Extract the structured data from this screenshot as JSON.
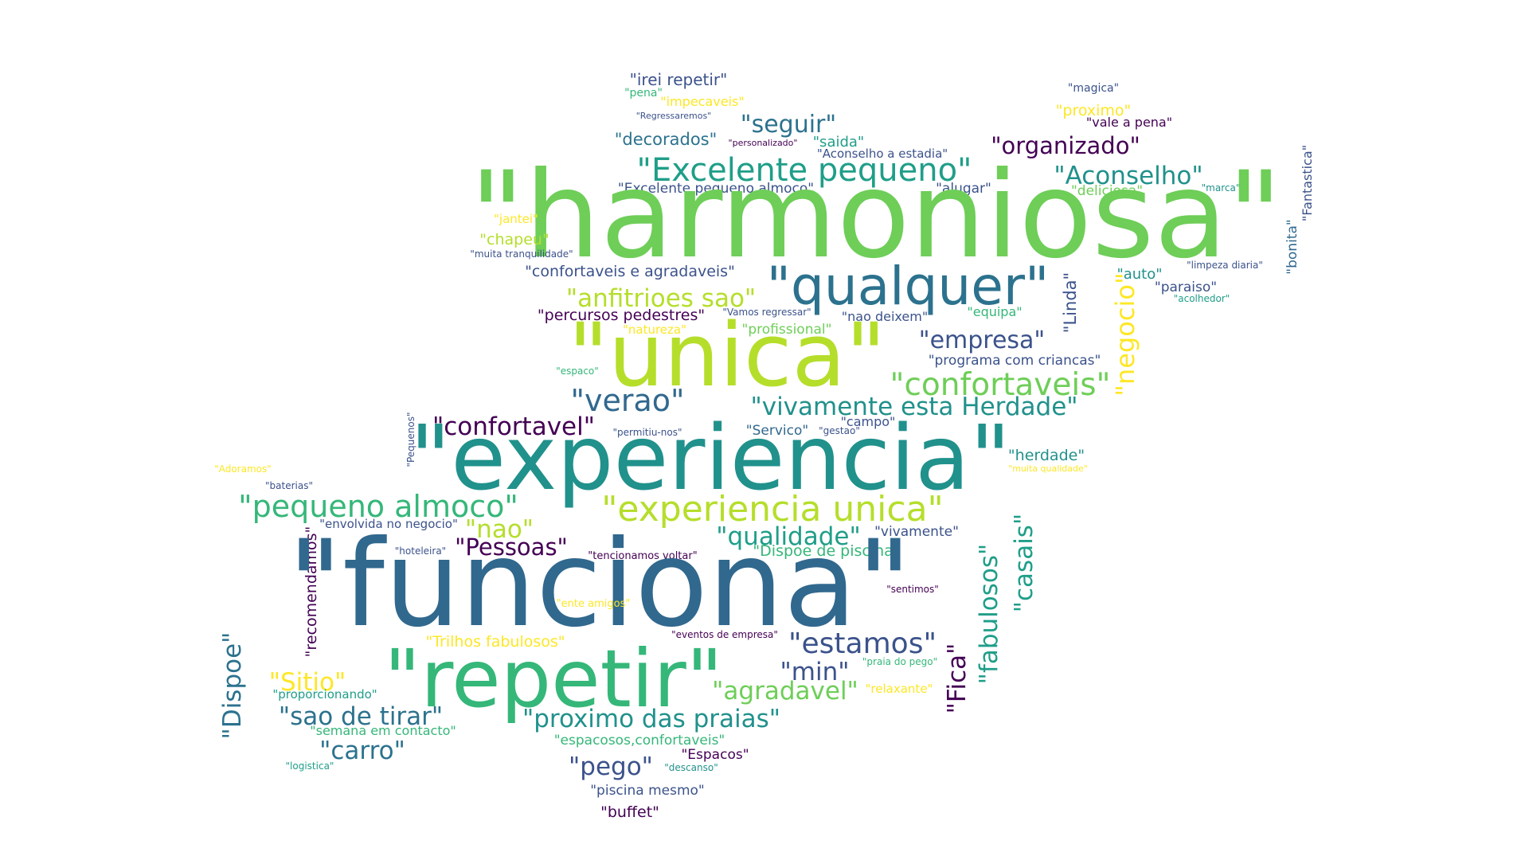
{
  "palette": {
    "dark_purple": "#440154",
    "indigo": "#3b528b",
    "blue": "#31688e",
    "teal_blue": "#2c728e",
    "teal": "#21918c",
    "sea_green": "#1f9e89",
    "green": "#35b779",
    "light_green": "#6ece58",
    "lime": "#b5de2b",
    "yellow": "#fde725"
  },
  "words": [
    {
      "text": "\"irei repetir\"",
      "color": "#3b528b"
    },
    {
      "text": "\"pena\"",
      "color": "#35b779"
    },
    {
      "text": "\"impecaveis\"",
      "color": "#fde725"
    },
    {
      "text": "\"Regressaremos\"",
      "color": "#3b528b"
    },
    {
      "text": "\"seguir\"",
      "color": "#2c728e"
    },
    {
      "text": "\"decorados\"",
      "color": "#2c728e"
    },
    {
      "text": "\"personalizado\"",
      "color": "#440154"
    },
    {
      "text": "\"saida\"",
      "color": "#1f9e89"
    },
    {
      "text": "\"Aconselho a estadia\"",
      "color": "#3b528b"
    },
    {
      "text": "\"magica\"",
      "color": "#3b528b"
    },
    {
      "text": "\"proximo\"",
      "color": "#fde725"
    },
    {
      "text": "\"vale a pena\"",
      "color": "#440154"
    },
    {
      "text": "\"organizado\"",
      "color": "#440154"
    },
    {
      "text": "\"Excelente pequeno\"",
      "color": "#1f9e89"
    },
    {
      "text": "\"Aconselho\"",
      "color": "#21918c"
    },
    {
      "text": "\"Excelente pequeno almoco\"",
      "color": "#3b528b"
    },
    {
      "text": "\"alugar\"",
      "color": "#3b528b"
    },
    {
      "text": "\"deliciosa\"",
      "color": "#6ece58"
    },
    {
      "text": "\"marca\"",
      "color": "#21918c"
    },
    {
      "text": "\"Fantastica\"",
      "color": "#3b528b"
    },
    {
      "text": "\"bonita\"",
      "color": "#31688e"
    },
    {
      "text": "\"harmoniosa\"",
      "color": "#6ece58"
    },
    {
      "text": "\"jantei\"",
      "color": "#fde725"
    },
    {
      "text": "\"chapeu\"",
      "color": "#b5de2b"
    },
    {
      "text": "\"muita tranquilidade\"",
      "color": "#3b528b"
    },
    {
      "text": "\"confortaveis e agradaveis\"",
      "color": "#3b528b"
    },
    {
      "text": "\"qualquer\"",
      "color": "#2c728e"
    },
    {
      "text": "\"auto\"",
      "color": "#21918c"
    },
    {
      "text": "\"limpeza diaria\"",
      "color": "#3b528b"
    },
    {
      "text": "\"paraiso\"",
      "color": "#3b528b"
    },
    {
      "text": "\"acolhedor\"",
      "color": "#1f9e89"
    },
    {
      "text": "\"anfitrioes sao\"",
      "color": "#b5de2b"
    },
    {
      "text": "\"percursos pedestres\"",
      "color": "#440154"
    },
    {
      "text": "\"Vamos regressar\"",
      "color": "#3b528b"
    },
    {
      "text": "\"nao deixem\"",
      "color": "#3b528b"
    },
    {
      "text": "\"equipa\"",
      "color": "#35b779"
    },
    {
      "text": "\"Linda\"",
      "color": "#3b528b"
    },
    {
      "text": "\"negocio\"",
      "color": "#fde725"
    },
    {
      "text": "\"natureza\"",
      "color": "#fde725"
    },
    {
      "text": "\"profissional\"",
      "color": "#6ece58"
    },
    {
      "text": "\"unica\"",
      "color": "#b5de2b"
    },
    {
      "text": "\"empresa\"",
      "color": "#3b528b"
    },
    {
      "text": "\"programa com criancas\"",
      "color": "#3b528b"
    },
    {
      "text": "\"espaco\"",
      "color": "#35b779"
    },
    {
      "text": "\"confortaveis\"",
      "color": "#6ece58"
    },
    {
      "text": "\"verao\"",
      "color": "#31688e"
    },
    {
      "text": "\"vivamente esta Herdade\"",
      "color": "#21918c"
    },
    {
      "text": "\"confortavel\"",
      "color": "#440154"
    },
    {
      "text": "\"permitiu-nos\"",
      "color": "#3b528b"
    },
    {
      "text": "\"Servico\"",
      "color": "#31688e"
    },
    {
      "text": "\"gestao\"",
      "color": "#3b528b"
    },
    {
      "text": "\"campo\"",
      "color": "#3b528b"
    },
    {
      "text": "\"Pequenos\"",
      "color": "#3b528b"
    },
    {
      "text": "\"experiencia\"",
      "color": "#21918c"
    },
    {
      "text": "\"herdade\"",
      "color": "#21918c"
    },
    {
      "text": "\"muita qualidade\"",
      "color": "#fde725"
    },
    {
      "text": "\"Adoramos\"",
      "color": "#fde725"
    },
    {
      "text": "\"baterias\"",
      "color": "#3b528b"
    },
    {
      "text": "\"pequeno almoco\"",
      "color": "#35b779"
    },
    {
      "text": "\"envolvida no negocio\"",
      "color": "#3b528b"
    },
    {
      "text": "\"nao\"",
      "color": "#b5de2b"
    },
    {
      "text": "\"experiencia unica\"",
      "color": "#b5de2b"
    },
    {
      "text": "\"casais\"",
      "color": "#1f9e89"
    },
    {
      "text": "\"fabulosos\"",
      "color": "#1f9e89"
    },
    {
      "text": "\"qualidade\"",
      "color": "#1f9e89"
    },
    {
      "text": "\"vivamente\"",
      "color": "#3b528b"
    },
    {
      "text": "\"Pessoas\"",
      "color": "#440154"
    },
    {
      "text": "\"hoteleira\"",
      "color": "#3b528b"
    },
    {
      "text": "\"tencionamos voltar\"",
      "color": "#440154"
    },
    {
      "text": "\"Dispoe de piscina\"",
      "color": "#35b779"
    },
    {
      "text": "\"recomendamos\"",
      "color": "#440154"
    },
    {
      "text": "\"funciona\"",
      "color": "#31688e"
    },
    {
      "text": "\"sentimos\"",
      "color": "#440154"
    },
    {
      "text": "\"ente amigos\"",
      "color": "#fde725"
    },
    {
      "text": "\"Dispoe\"",
      "color": "#2c728e"
    },
    {
      "text": "\"eventos de empresa\"",
      "color": "#440154"
    },
    {
      "text": "\"Fica\"",
      "color": "#440154"
    },
    {
      "text": "\"Trilhos fabulosos\"",
      "color": "#fde725"
    },
    {
      "text": "\"estamos\"",
      "color": "#3b528b"
    },
    {
      "text": "\"praia do pego\"",
      "color": "#35b779"
    },
    {
      "text": "\"repetir\"",
      "color": "#35b779"
    },
    {
      "text": "\"Sitio\"",
      "color": "#fde725"
    },
    {
      "text": "\"min\"",
      "color": "#3b528b"
    },
    {
      "text": "\"relaxante\"",
      "color": "#fde725"
    },
    {
      "text": "\"agradavel\"",
      "color": "#6ece58"
    },
    {
      "text": "\"proporcionando\"",
      "color": "#1f9e89"
    },
    {
      "text": "\"sao de tirar\"",
      "color": "#2c728e"
    },
    {
      "text": "\"proximo das praias\"",
      "color": "#21918c"
    },
    {
      "text": "\"semana em contacto\"",
      "color": "#35b779"
    },
    {
      "text": "\"espacosos,confortaveis\"",
      "color": "#35b779"
    },
    {
      "text": "\"carro\"",
      "color": "#2c728e"
    },
    {
      "text": "\"Espacos\"",
      "color": "#440154"
    },
    {
      "text": "\"pego\"",
      "color": "#3b528b"
    },
    {
      "text": "\"descanso\"",
      "color": "#21918c"
    },
    {
      "text": "\"logistica\"",
      "color": "#1f9e89"
    },
    {
      "text": "\"piscina mesmo\"",
      "color": "#3b528b"
    },
    {
      "text": "\"buffet\"",
      "color": "#440154"
    }
  ]
}
